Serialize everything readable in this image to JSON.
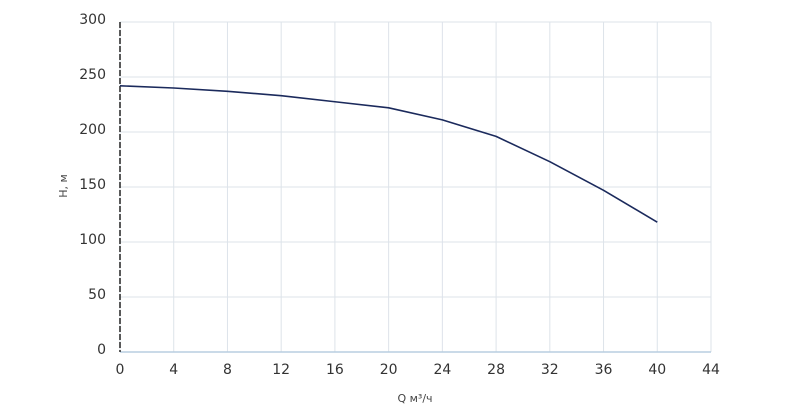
{
  "chart_data": {
    "type": "line",
    "x_label": "Q м³/ч",
    "y_label": "H, м",
    "x": [
      0,
      4,
      8,
      12,
      16,
      20,
      24,
      28,
      32,
      36,
      40
    ],
    "series": [
      {
        "name": "H",
        "color": "#1b2a5c",
        "values": [
          242,
          240,
          237,
          233,
          227.5,
          222,
          211,
          196,
          173,
          147,
          118
        ]
      }
    ],
    "xlim": [
      0,
      44
    ],
    "xticks": [
      0,
      4,
      8,
      12,
      16,
      20,
      24,
      28,
      32,
      36,
      40,
      44
    ],
    "ylim": [
      0,
      300
    ],
    "yticks": [
      0,
      50,
      100,
      150,
      200,
      250,
      300
    ],
    "grid": true,
    "legend": false
  }
}
